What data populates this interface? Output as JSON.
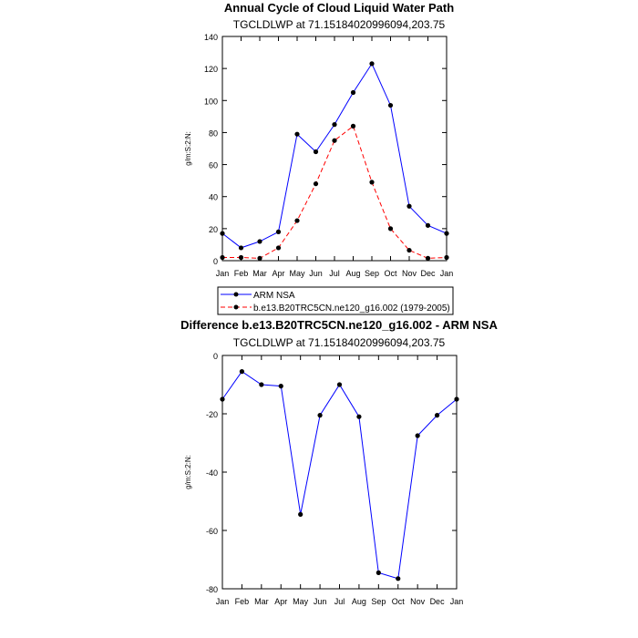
{
  "chart_data": [
    {
      "type": "line",
      "title": "Annual Cycle of Cloud Liquid Water Path",
      "subtitle": "TGCLDLWP at 71.15184020996094,203.75",
      "ylabel": "g/m:S:2:N:",
      "xlabel": "",
      "categories": [
        "Jan",
        "Feb",
        "Mar",
        "Apr",
        "May",
        "Jun",
        "Jul",
        "Aug",
        "Sep",
        "Oct",
        "Nov",
        "Dec",
        "Jan"
      ],
      "ylim": [
        0,
        140
      ],
      "yticks": [
        0,
        20,
        40,
        60,
        80,
        100,
        120,
        140
      ],
      "grid": false,
      "legend_placement": "below",
      "series": [
        {
          "name": "ARM NSA",
          "color": "#0000ff",
          "dash": "solid",
          "values": [
            17,
            8,
            12,
            18,
            79,
            68,
            85,
            105,
            123,
            97,
            34,
            22,
            17
          ]
        },
        {
          "name": "b.e13.B20TRC5CN.ne120_g16.002 (1979-2005)",
          "color": "#ff0000",
          "dash": "dashed",
          "values": [
            2,
            2,
            1.5,
            8,
            25,
            48,
            75,
            84,
            49,
            20,
            6.5,
            1.5,
            2
          ]
        }
      ]
    },
    {
      "type": "line",
      "title": "Difference b.e13.B20TRC5CN.ne120_g16.002 - ARM NSA",
      "subtitle": "TGCLDLWP at 71.15184020996094,203.75",
      "ylabel": "g/m:S:2:N:",
      "xlabel": "",
      "categories": [
        "Jan",
        "Feb",
        "Mar",
        "Apr",
        "May",
        "Jun",
        "Jul",
        "Aug",
        "Sep",
        "Oct",
        "Nov",
        "Dec",
        "Jan"
      ],
      "ylim": [
        -80,
        0
      ],
      "yticks": [
        -80,
        -60,
        -40,
        -20,
        0
      ],
      "grid": false,
      "series": [
        {
          "color": "#0000ff",
          "dash": "solid",
          "values": [
            -15,
            -5.5,
            -10,
            -10.5,
            -54.5,
            -20.5,
            -10,
            -21,
            -74.5,
            -76.5,
            -27.5,
            -20.5,
            -15
          ]
        }
      ]
    }
  ]
}
